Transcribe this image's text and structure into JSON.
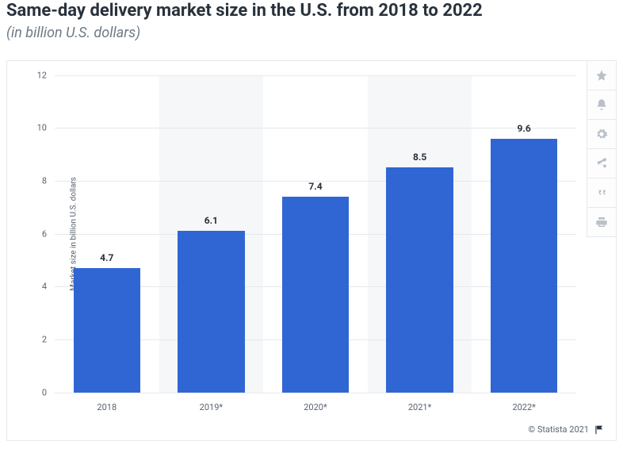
{
  "header": {
    "title": "Same-day delivery market size in the U.S. from 2018 to 2022",
    "subtitle": "(in billion U.S. dollars)"
  },
  "chart": {
    "type": "bar",
    "ylabel": "Market size in billion U.S. dollars",
    "ylim": [
      0,
      12
    ],
    "ytick_step": 2,
    "yticks": [
      "0",
      "2",
      "4",
      "6",
      "8",
      "10",
      "12"
    ],
    "categories": [
      "2018",
      "2019*",
      "2020*",
      "2021*",
      "2022*"
    ],
    "values": [
      4.7,
      6.1,
      7.4,
      8.5,
      9.6
    ],
    "value_labels": [
      "4.7",
      "6.1",
      "7.4",
      "8.5",
      "9.6"
    ],
    "bar_color": "#3066d4",
    "stripe_colors": [
      "#ffffff",
      "#f6f7f9"
    ],
    "grid_color": "#e6e9ed",
    "background_color": "#ffffff",
    "title_fontsize": 22,
    "label_fontsize": 11,
    "value_label_fontsize": 12,
    "bar_width": 0.64
  },
  "toolbar": {
    "star": "star-icon",
    "bell": "bell-icon",
    "gear": "gear-icon",
    "share": "share-icon",
    "quote": "quote-icon",
    "print": "print-icon"
  },
  "footer": {
    "copyright": "© Statista 2021",
    "flag": "flag"
  }
}
